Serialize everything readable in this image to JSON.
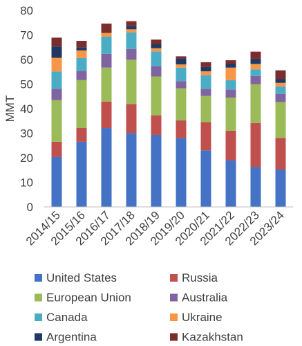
{
  "chart_data": {
    "type": "bar",
    "stacked": true,
    "title": "",
    "xlabel": "",
    "ylabel": "MMT",
    "ylim": [
      0,
      80
    ],
    "yticks": [
      0,
      10,
      20,
      30,
      40,
      50,
      60,
      70,
      80
    ],
    "grid": false,
    "legend_position": "bottom",
    "categories": [
      "2014/15",
      "2015/16",
      "2016/17",
      "2017/18",
      "2018/19",
      "2019/20",
      "2020/21",
      "2021/22",
      "2022/23",
      "2023/24"
    ],
    "series": [
      {
        "name": "United States",
        "color": "#4472C4",
        "values": [
          20.3,
          26.5,
          32.1,
          30.1,
          29.3,
          28.0,
          23.0,
          19.0,
          16.2,
          15.2
        ]
      },
      {
        "name": "Russia",
        "color": "#C0504D",
        "values": [
          6.2,
          5.7,
          10.8,
          11.8,
          8.0,
          7.2,
          11.5,
          12.0,
          17.9,
          12.9
        ]
      },
      {
        "name": "European Union",
        "color": "#9BBB59",
        "values": [
          17.0,
          19.4,
          13.8,
          18.0,
          15.8,
          13.1,
          10.7,
          13.5,
          15.9,
          14.6
        ]
      },
      {
        "name": "Australia",
        "color": "#8064A2",
        "values": [
          4.6,
          3.8,
          5.6,
          4.4,
          4.2,
          2.9,
          2.8,
          3.3,
          3.3,
          3.3
        ]
      },
      {
        "name": "Canada",
        "color": "#4BACC6",
        "values": [
          7.0,
          5.2,
          7.0,
          6.7,
          6.0,
          5.5,
          5.6,
          3.8,
          2.7,
          3.0
        ]
      },
      {
        "name": "Ukraine",
        "color": "#F79646",
        "values": [
          5.6,
          3.1,
          1.5,
          1.3,
          1.3,
          1.3,
          1.6,
          5.1,
          2.2,
          1.5
        ]
      },
      {
        "name": "Argentina",
        "color": "#1F3864",
        "values": [
          4.6,
          1.3,
          0.0,
          1.3,
          1.6,
          2.4,
          1.8,
          1.6,
          2.1,
          1.6
        ]
      },
      {
        "name": "Kazakhstan",
        "color": "#7B2C2C",
        "values": [
          3.6,
          2.6,
          3.8,
          2.0,
          1.9,
          0.9,
          1.9,
          1.4,
          2.9,
          3.5
        ]
      }
    ]
  }
}
